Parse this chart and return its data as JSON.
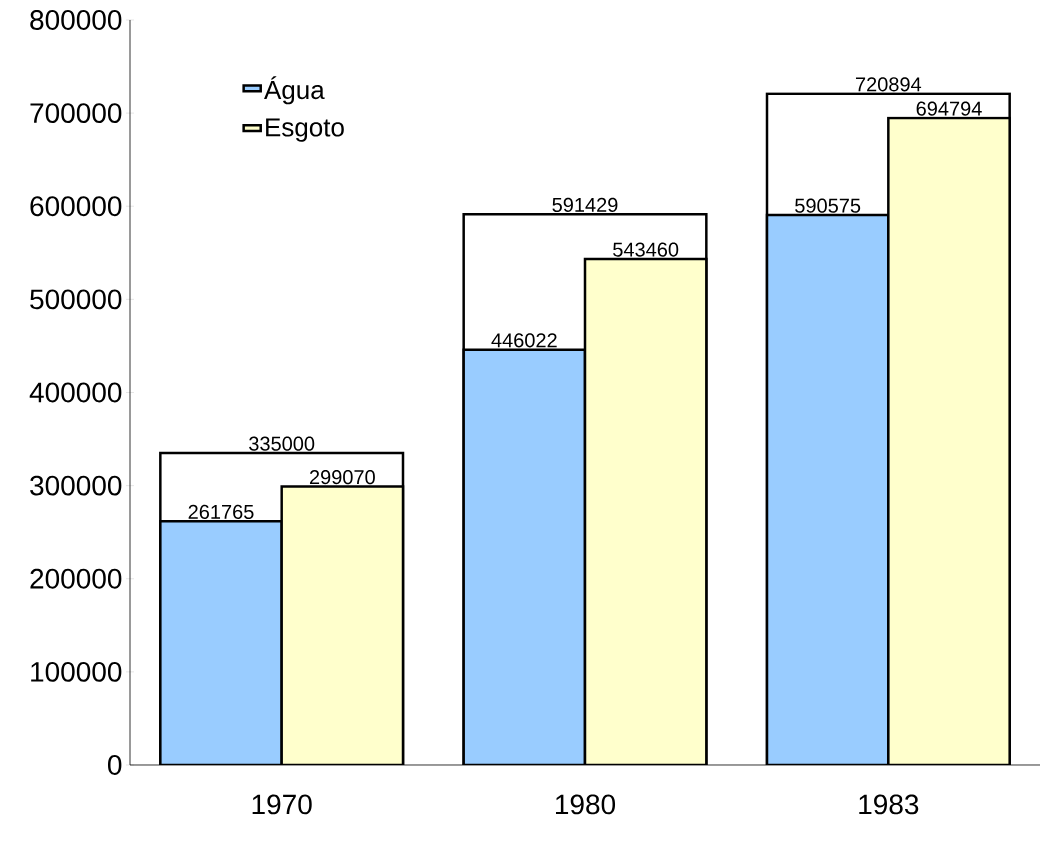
{
  "chart_data": {
    "type": "bar",
    "categories": [
      "1970",
      "1980",
      "1983"
    ],
    "series": [
      {
        "color": "#ffffff",
        "values": [
          335000,
          591429,
          720894
        ]
      },
      {
        "name": "Água",
        "color": "#99ccff",
        "values": [
          261765,
          446022,
          590575
        ]
      },
      {
        "name": "Esgoto",
        "color": "#ffffcc",
        "values": [
          299070,
          543460,
          694794
        ]
      }
    ],
    "ylim": [
      0,
      800000
    ],
    "yticks": [
      0,
      100000,
      200000,
      300000,
      400000,
      500000,
      600000,
      700000,
      800000
    ],
    "data_labels": true,
    "legend": "top left",
    "grid": false
  }
}
